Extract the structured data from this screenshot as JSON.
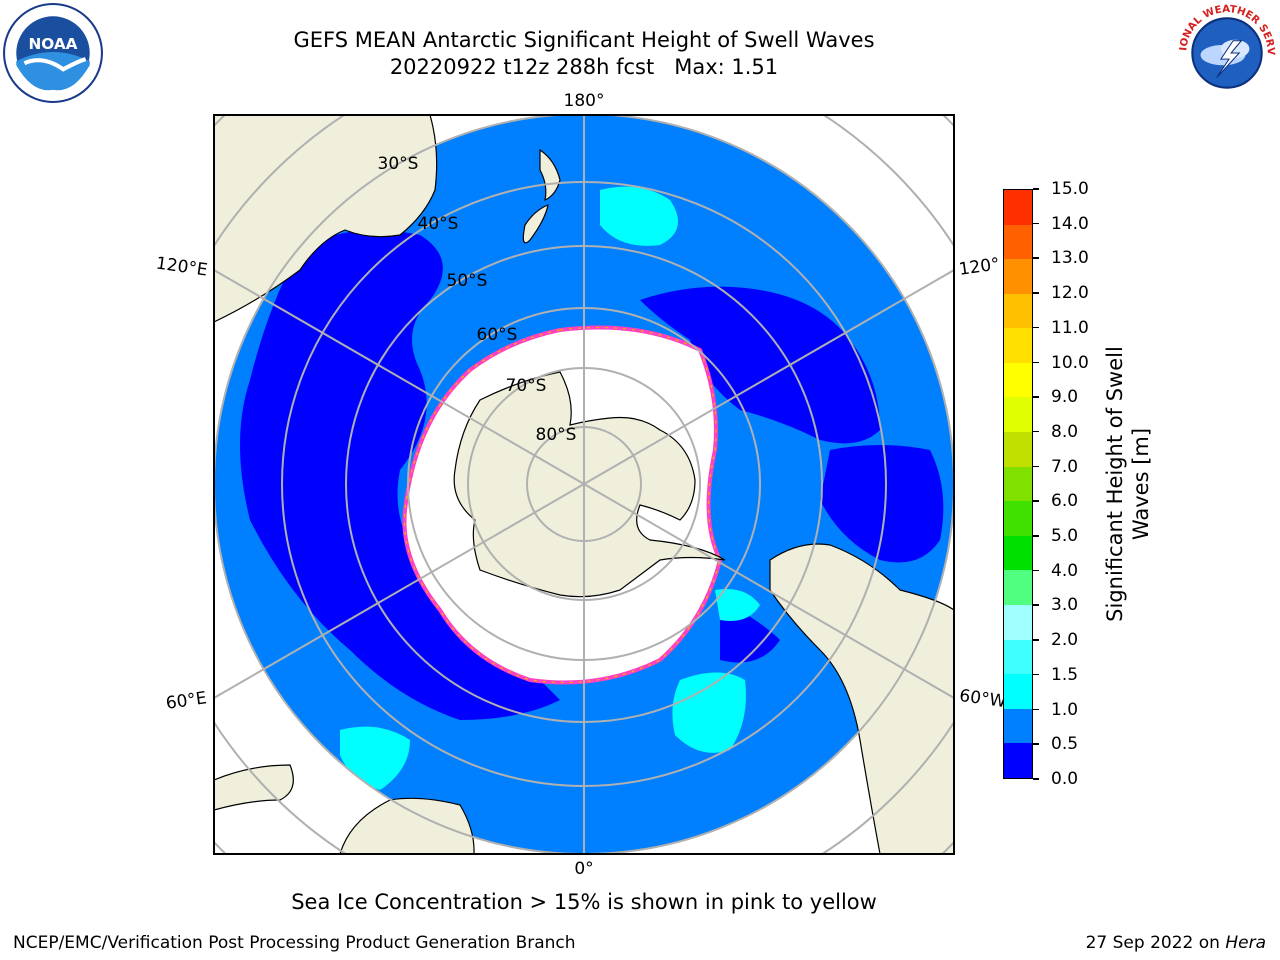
{
  "title": {
    "line1": "GEFS MEAN Antarctic Significant Height of Swell Waves",
    "line2": "20220922 t12z 288h fcst   Max: 1.51"
  },
  "logos": {
    "left": {
      "name": "noaa-logo",
      "text": "NOAA"
    },
    "right": {
      "name": "nws-logo",
      "text": "NATIONAL WEATHER SERVICE"
    }
  },
  "map": {
    "projection": "south-polar-stereographic",
    "ocean_color": "#0080ff",
    "low_color": "#0000ff",
    "cyan_color": "#00ffff",
    "land_color": "#efefdb",
    "ice_color": "#ffffff",
    "grid_color": "#b0b0b0",
    "lon_labels": {
      "top": "180°",
      "bottom": "0°",
      "left_upper": "120°E",
      "left_lower": "60°E",
      "right_upper": "120°",
      "right_lower": "60°W"
    },
    "lat_labels": [
      "30°S",
      "40°S",
      "50°S",
      "60°S",
      "70°S",
      "80°S"
    ]
  },
  "colorbar": {
    "label": "Significant Height of Swell\nWaves [m]",
    "ticks": [
      "0.0",
      "0.5",
      "1.0",
      "1.5",
      "2.0",
      "3.0",
      "4.0",
      "5.0",
      "6.0",
      "7.0",
      "8.0",
      "9.0",
      "10.0",
      "11.0",
      "12.0",
      "13.0",
      "14.0",
      "15.0"
    ],
    "colors": [
      "#0000ff",
      "#0080ff",
      "#00ffff",
      "#40ffff",
      "#a0ffff",
      "#50ff80",
      "#00e000",
      "#40e000",
      "#80e000",
      "#c0e000",
      "#e0ff00",
      "#ffff00",
      "#ffe000",
      "#ffc000",
      "#ff9000",
      "#ff6000",
      "#ff3000"
    ]
  },
  "sea_ice_note": "Sea Ice Concentration > 15% is shown in pink to yellow",
  "footer": {
    "left": "NCEP/EMC/Verification Post Processing Product Generation Branch",
    "right_prefix": "27 Sep 2022 on ",
    "right_machine": "Hera"
  }
}
